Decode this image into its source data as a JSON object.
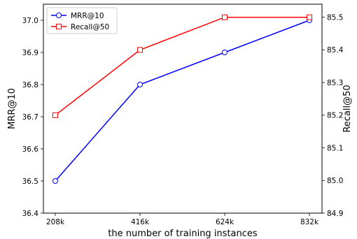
{
  "chart_data": {
    "type": "line",
    "xlabel": "the number of training instances",
    "categories": [
      "208k",
      "416k",
      "624k",
      "832k"
    ],
    "y_left": {
      "label": "MRR@10",
      "ylim": [
        36.4,
        37.05
      ],
      "ticks": [
        "36.4",
        "36.5",
        "36.6",
        "36.7",
        "36.8",
        "36.9",
        "37.0"
      ]
    },
    "y_right": {
      "label": "Recall@50",
      "ylim": [
        84.9,
        85.54
      ],
      "ticks": [
        "84.9",
        "85.0",
        "85.1",
        "85.2",
        "85.3",
        "85.4",
        "85.5"
      ]
    },
    "series": [
      {
        "name": "MRR@10",
        "axis": "left",
        "values": [
          36.5,
          36.8,
          36.9,
          37.0
        ],
        "color": "#0000ff",
        "marker": "circle"
      },
      {
        "name": "Recall@50",
        "axis": "right",
        "values": [
          85.2,
          85.4,
          85.5,
          85.5
        ],
        "color": "#ff0000",
        "marker": "square"
      }
    ],
    "legend_position": "top-left",
    "grid": false
  }
}
